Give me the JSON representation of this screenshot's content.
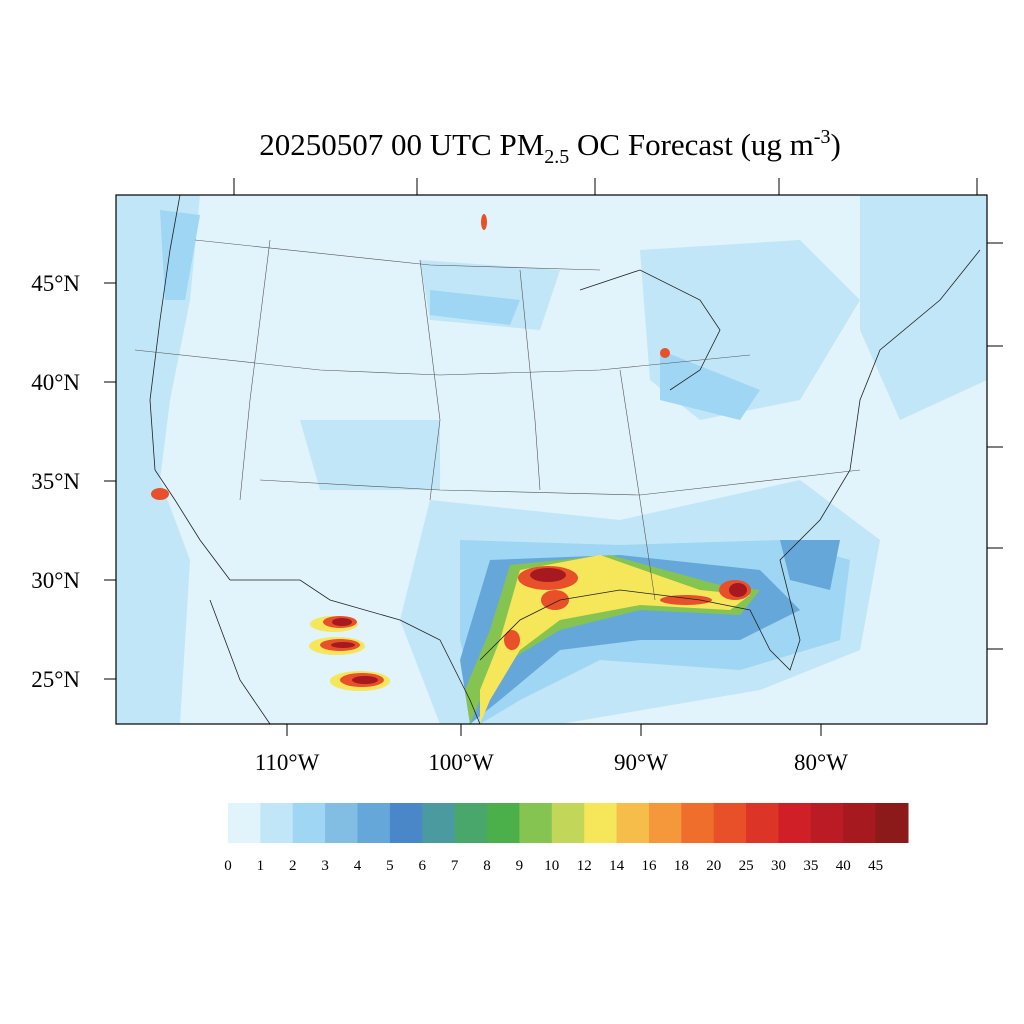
{
  "title": {
    "main": "20250507 00 UTC PM",
    "sub": "2.5",
    "middle": " OC Forecast (ug m",
    "sup": "-3",
    "end": ")"
  },
  "lat_labels": [
    "45°N",
    "40°N",
    "35°N",
    "30°N",
    "25°N"
  ],
  "lon_labels": [
    "110°W",
    "100°W",
    "90°W",
    "80°W"
  ],
  "colorbar": {
    "colors": [
      "#e1f3fb",
      "#c0e6f7",
      "#9ed6f3",
      "#82bde3",
      "#65a7d8",
      "#4a87c9",
      "#4b9aa0",
      "#4aa76c",
      "#4bb04a",
      "#86c451",
      "#c2d65a",
      "#f6e65a",
      "#f6bd4a",
      "#f5973b",
      "#f06e2b",
      "#e8502a",
      "#dc3427",
      "#d01f27",
      "#bb1b25",
      "#a5191f",
      "#8c1a1a"
    ],
    "labels": [
      "0",
      "1",
      "2",
      "3",
      "4",
      "5",
      "6",
      "7",
      "8",
      "9",
      "10",
      "12",
      "14",
      "16",
      "18",
      "20",
      "25",
      "30",
      "35",
      "40",
      "45"
    ]
  }
}
